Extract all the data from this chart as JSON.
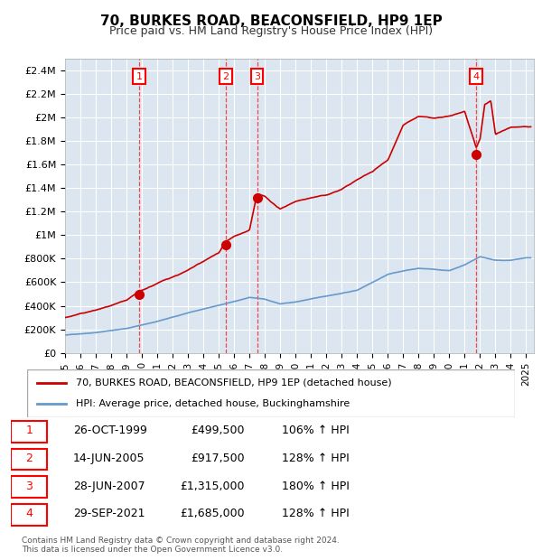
{
  "title": "70, BURKES ROAD, BEACONSFIELD, HP9 1EP",
  "subtitle": "Price paid vs. HM Land Registry's House Price Index (HPI)",
  "background_color": "#dce6f0",
  "plot_bg_color": "#dce6f0",
  "red_line_color": "#cc0000",
  "blue_line_color": "#6699cc",
  "ylim": [
    0,
    2500000
  ],
  "xlim_start": 1995.0,
  "xlim_end": 2025.5,
  "yticks": [
    0,
    200000,
    400000,
    600000,
    800000,
    1000000,
    1200000,
    1400000,
    1600000,
    1800000,
    2000000,
    2200000,
    2400000
  ],
  "ytick_labels": [
    "£0",
    "£200K",
    "£400K",
    "£600K",
    "£800K",
    "£1M",
    "£1.2M",
    "£1.4M",
    "£1.6M",
    "£1.8M",
    "£2M",
    "£2.2M",
    "£2.4M"
  ],
  "xtick_years": [
    1995,
    1996,
    1997,
    1998,
    1999,
    2000,
    2001,
    2002,
    2003,
    2004,
    2005,
    2006,
    2007,
    2008,
    2009,
    2010,
    2011,
    2012,
    2013,
    2014,
    2015,
    2016,
    2017,
    2018,
    2019,
    2020,
    2021,
    2022,
    2023,
    2024,
    2025
  ],
  "sales": [
    {
      "num": 1,
      "date": "26-OCT-1999",
      "year": 1999.82,
      "price": 499500,
      "pct": "106%",
      "dir": "↑"
    },
    {
      "num": 2,
      "date": "14-JUN-2005",
      "year": 2005.45,
      "price": 917500,
      "pct": "128%",
      "dir": "↑"
    },
    {
      "num": 3,
      "date": "28-JUN-2007",
      "year": 2007.49,
      "price": 1315000,
      "pct": "180%",
      "dir": "↑"
    },
    {
      "num": 4,
      "date": "29-SEP-2021",
      "year": 2021.75,
      "price": 1685000,
      "pct": "128%",
      "dir": "↑"
    }
  ],
  "legend_entries": [
    "70, BURKES ROAD, BEACONSFIELD, HP9 1EP (detached house)",
    "HPI: Average price, detached house, Buckinghamshire"
  ],
  "footer": "Contains HM Land Registry data © Crown copyright and database right 2024.\nThis data is licensed under the Open Government Licence v3.0."
}
